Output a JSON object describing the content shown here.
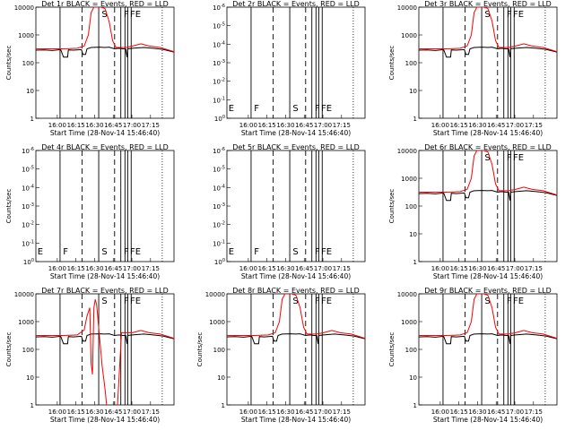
{
  "chart_data": [
    {
      "type": "line",
      "title": "Det 1r BLACK = Events, RED = LLD",
      "ylabel": "Counts/sec",
      "xlabel": "Start Time (28-Nov-14 15:46:40)",
      "yscale": "log",
      "ylim": [
        1,
        10000
      ],
      "yticks": [
        "1",
        "10",
        "100",
        "1000",
        "10000"
      ],
      "xticks": [
        "16:00",
        "16:15",
        "16:30",
        "16:45",
        "17:00",
        "17:15"
      ],
      "markers": [
        "",
        "",
        "S",
        "F",
        "FE"
      ],
      "curve": "flare",
      "series": [
        {
          "color": "#000000"
        },
        {
          "color": "#ff0000"
        }
      ]
    },
    {
      "type": "line",
      "title": "Det 2r BLACK = Events, RED = LLD",
      "ylabel": "",
      "xlabel": "Start Time (28-Nov-14 15:46:40)",
      "yscale": "log",
      "ylim": [
        1,
        1e-06
      ],
      "yticks": [
        "10^0",
        "10^-1",
        "10^-2",
        "10^-3",
        "10^-4",
        "10^-5",
        "10^-6"
      ],
      "xticks": [
        "16:00",
        "16:15",
        "16:30",
        "16:45",
        "17:00",
        "17:15"
      ],
      "markers": [
        "E",
        "F",
        "S",
        "F",
        "FE"
      ],
      "curve": "none",
      "series": []
    },
    {
      "type": "line",
      "title": "Det 3r BLACK = Events, RED = LLD",
      "ylabel": "Counts/sec",
      "xlabel": "Start Time (28-Nov-14 15:46:40)",
      "yscale": "log",
      "ylim": [
        1,
        10000
      ],
      "yticks": [
        "1",
        "10",
        "100",
        "1000",
        "10000"
      ],
      "xticks": [
        "16:00",
        "16:15",
        "16:30",
        "16:45",
        "17:00",
        "17:15"
      ],
      "markers": [
        "",
        "",
        "S",
        "F",
        "FE"
      ],
      "curve": "flare",
      "series": [
        {
          "color": "#000000"
        },
        {
          "color": "#ff0000"
        }
      ]
    },
    {
      "type": "line",
      "title": "Det 4r BLACK = Events, RED = LLD",
      "ylabel": "Counts/sec",
      "xlabel": "Start Time (28-Nov-14 15:46:40)",
      "yscale": "log",
      "ylim": [
        1,
        1e-06
      ],
      "yticks": [
        "10^0",
        "10^-1",
        "10^-2",
        "10^-3",
        "10^-4",
        "10^-5",
        "10^-6"
      ],
      "xticks": [
        "16:00",
        "16:15",
        "16:30",
        "16:45",
        "17:00",
        "17:15"
      ],
      "markers": [
        "E",
        "F",
        "S",
        "F",
        "FE"
      ],
      "curve": "none",
      "series": []
    },
    {
      "type": "line",
      "title": "Det 5r BLACK = Events, RED = LLD",
      "ylabel": "",
      "xlabel": "Start Time (28-Nov-14 15:46:40)",
      "yscale": "log",
      "ylim": [
        1,
        1e-06
      ],
      "yticks": [
        "10^0",
        "10^-1",
        "10^-2",
        "10^-3",
        "10^-4",
        "10^-5",
        "10^-6"
      ],
      "xticks": [
        "16:00",
        "16:15",
        "16:30",
        "16:45",
        "17:00",
        "17:15"
      ],
      "markers": [
        "E",
        "F",
        "S",
        "F",
        "FE"
      ],
      "curve": "none",
      "series": []
    },
    {
      "type": "line",
      "title": "Det 6r BLACK = Events, RED = LLD",
      "ylabel": "Counts/sec",
      "xlabel": "Start Time (28-Nov-14 15:46:40)",
      "yscale": "log",
      "ylim": [
        1,
        10000
      ],
      "yticks": [
        "1",
        "10",
        "100",
        "1000",
        "10000"
      ],
      "xticks": [
        "16:00",
        "16:15",
        "16:30",
        "16:45",
        "17:00",
        "17:15"
      ],
      "markers": [
        "",
        "",
        "S",
        "F",
        "FE"
      ],
      "curve": "flare",
      "series": [
        {
          "color": "#000000"
        },
        {
          "color": "#ff0000"
        }
      ]
    },
    {
      "type": "line",
      "title": "Det 7r BLACK = Events, RED = LLD",
      "ylabel": "Counts/sec",
      "xlabel": "Start Time (28-Nov-14 15:46:40)",
      "yscale": "log",
      "ylim": [
        1,
        10000
      ],
      "yticks": [
        "1",
        "10",
        "100",
        "1000",
        "10000"
      ],
      "xticks": [
        "16:00",
        "16:15",
        "16:30",
        "16:45",
        "17:00",
        "17:15"
      ],
      "markers": [
        "",
        "",
        "S",
        "F",
        "FE"
      ],
      "curve": "dropout",
      "series": [
        {
          "color": "#000000"
        },
        {
          "color": "#ff0000"
        }
      ]
    },
    {
      "type": "line",
      "title": "Det 8r BLACK = Events, RED = LLD",
      "ylabel": "Counts/sec",
      "xlabel": "Start Time (28-Nov-14 15:46:40)",
      "yscale": "log",
      "ylim": [
        1,
        10000
      ],
      "yticks": [
        "1",
        "10",
        "100",
        "1000",
        "10000"
      ],
      "xticks": [
        "16:00",
        "16:15",
        "16:30",
        "16:45",
        "17:00",
        "17:15"
      ],
      "markers": [
        "",
        "",
        "S",
        "F",
        "FE"
      ],
      "curve": "flare",
      "series": [
        {
          "color": "#000000"
        },
        {
          "color": "#ff0000"
        }
      ]
    },
    {
      "type": "line",
      "title": "Det 9r BLACK = Events, RED = LLD",
      "ylabel": "Counts/sec",
      "xlabel": "Start Time (28-Nov-14 15:46:40)",
      "yscale": "log",
      "ylim": [
        1,
        10000
      ],
      "yticks": [
        "1",
        "10",
        "100",
        "1000",
        "10000"
      ],
      "xticks": [
        "16:00",
        "16:15",
        "16:30",
        "16:45",
        "17:00",
        "17:15"
      ],
      "markers": [
        "",
        "",
        "S",
        "F",
        "FE"
      ],
      "curve": "flare",
      "series": [
        {
          "color": "#000000"
        },
        {
          "color": "#ff0000"
        }
      ]
    }
  ]
}
